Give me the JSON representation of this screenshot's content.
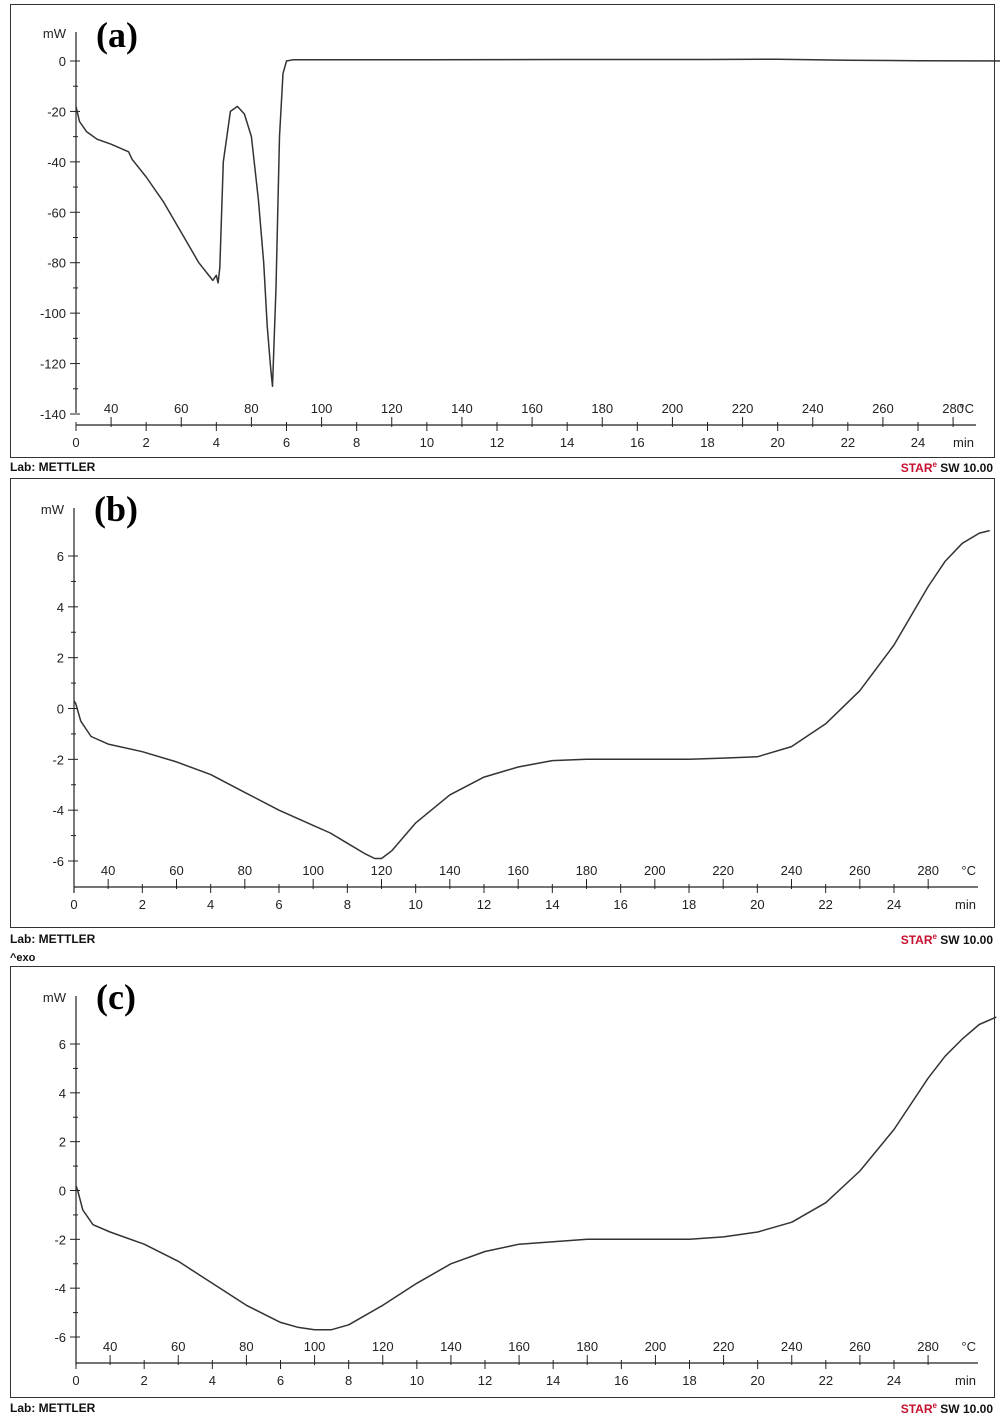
{
  "footer": {
    "lab": "Lab: METTLER",
    "software_brand": "STAR",
    "software_mark": "e",
    "software_version": " SW 10.00"
  },
  "exo_note": "^exo",
  "chart_data": [
    {
      "type": "line",
      "panel_label": "(a)",
      "ylabel": "mW",
      "ylim": [
        -140,
        0
      ],
      "yticks": [
        0,
        -20,
        -40,
        -60,
        -80,
        -100,
        -120,
        -140
      ],
      "xlabel": "min",
      "xlim": [
        0,
        27
      ],
      "xticks": [
        0,
        2,
        4,
        6,
        8,
        10,
        12,
        14,
        16,
        18,
        20,
        22,
        24
      ],
      "secondary_xlabel": "°C",
      "secondary_xticks": [
        40,
        60,
        80,
        100,
        120,
        140,
        160,
        180,
        200,
        220,
        240,
        260,
        280
      ],
      "secondary_x_positions_min": [
        1,
        3,
        5,
        7,
        9,
        11,
        13,
        15,
        17,
        19,
        21,
        23,
        25
      ],
      "series": [
        {
          "color": "#333333",
          "x": [
            0,
            0.1,
            0.3,
            0.6,
            1.0,
            1.5,
            1.6,
            2.0,
            2.5,
            3.0,
            3.5,
            3.9,
            4.0,
            4.05,
            4.1,
            4.2,
            4.4,
            4.6,
            4.8,
            5.0,
            5.2,
            5.35,
            5.45,
            5.55,
            5.6,
            5.7,
            5.8,
            5.9,
            6.0,
            6.2,
            7,
            10,
            14,
            18,
            20,
            22,
            24,
            27
          ],
          "y": [
            -18,
            -24,
            -28,
            -31,
            -33,
            -36,
            -39,
            -46,
            -56,
            -68,
            -80,
            -87,
            -85,
            -88,
            -82,
            -40,
            -20,
            -18,
            -21,
            -30,
            -55,
            -80,
            -105,
            -122,
            -129,
            -90,
            -30,
            -5,
            0,
            0.5,
            0.5,
            0.5,
            0.6,
            0.6,
            0.7,
            0.3,
            0.1,
            0
          ]
        }
      ]
    },
    {
      "type": "line",
      "panel_label": "(b)",
      "ylabel": "mW",
      "ylim": [
        -7,
        7
      ],
      "yticks": [
        6,
        4,
        2,
        0,
        -2,
        -4,
        -6
      ],
      "xlabel": "min",
      "xlim": [
        0,
        26.8
      ],
      "xticks": [
        0,
        2,
        4,
        6,
        8,
        10,
        12,
        14,
        16,
        18,
        20,
        22,
        24
      ],
      "secondary_xlabel": "°C",
      "secondary_xticks": [
        40,
        60,
        80,
        100,
        120,
        140,
        160,
        180,
        200,
        220,
        240,
        260,
        280
      ],
      "secondary_x_positions_min": [
        1,
        3,
        5,
        7,
        9,
        11,
        13,
        15,
        17,
        19,
        21,
        23,
        25
      ],
      "series": [
        {
          "color": "#333333",
          "x": [
            0,
            0.05,
            0.2,
            0.5,
            1.0,
            2,
            3,
            4,
            5,
            6,
            7,
            7.5,
            8,
            8.5,
            8.8,
            9.0,
            9.3,
            10,
            11,
            12,
            13,
            14,
            15,
            16,
            17,
            18,
            19,
            20,
            21,
            22,
            23,
            24,
            25,
            25.5,
            26,
            26.5,
            26.8
          ],
          "y": [
            0.3,
            0.2,
            -0.5,
            -1.1,
            -1.4,
            -1.7,
            -2.1,
            -2.6,
            -3.3,
            -4.0,
            -4.6,
            -4.9,
            -5.3,
            -5.7,
            -5.9,
            -5.9,
            -5.6,
            -4.5,
            -3.4,
            -2.7,
            -2.3,
            -2.05,
            -2.0,
            -2.0,
            -2.0,
            -2.0,
            -1.95,
            -1.9,
            -1.5,
            -0.6,
            0.7,
            2.5,
            4.8,
            5.8,
            6.5,
            6.9,
            7.0
          ]
        }
      ]
    },
    {
      "type": "line",
      "panel_label": "(c)",
      "ylabel": "mW",
      "ylim": [
        -7,
        7
      ],
      "yticks": [
        6,
        4,
        2,
        0,
        -2,
        -4,
        -6
      ],
      "xlabel": "min",
      "xlim": [
        0,
        27
      ],
      "xticks": [
        0,
        2,
        4,
        6,
        8,
        10,
        12,
        14,
        16,
        18,
        20,
        22,
        24
      ],
      "secondary_xlabel": "°C",
      "secondary_xticks": [
        40,
        60,
        80,
        100,
        120,
        140,
        160,
        180,
        200,
        220,
        240,
        260,
        280
      ],
      "secondary_x_positions_min": [
        1,
        3,
        5,
        7,
        9,
        11,
        13,
        15,
        17,
        19,
        21,
        23,
        25
      ],
      "series": [
        {
          "color": "#333333",
          "x": [
            0,
            0.05,
            0.2,
            0.5,
            1.0,
            2,
            3,
            4,
            5,
            6,
            6.5,
            7.0,
            7.5,
            8,
            9,
            10,
            11,
            12,
            13,
            14,
            15,
            16,
            17,
            18,
            19,
            20,
            21,
            22,
            23,
            24,
            25,
            25.5,
            26,
            26.5,
            27
          ],
          "y": [
            0.2,
            0.0,
            -0.8,
            -1.4,
            -1.7,
            -2.2,
            -2.9,
            -3.8,
            -4.7,
            -5.4,
            -5.6,
            -5.7,
            -5.7,
            -5.5,
            -4.7,
            -3.8,
            -3.0,
            -2.5,
            -2.2,
            -2.1,
            -2.0,
            -2.0,
            -2.0,
            -2.0,
            -1.9,
            -1.7,
            -1.3,
            -0.5,
            0.8,
            2.5,
            4.6,
            5.5,
            6.2,
            6.8,
            7.1
          ]
        }
      ]
    }
  ]
}
